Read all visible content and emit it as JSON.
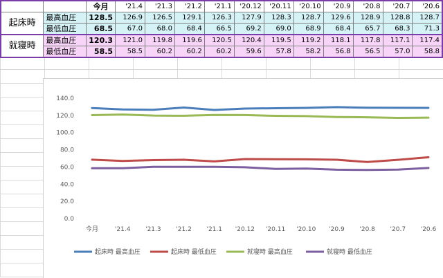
{
  "table": {
    "months": [
      "今月",
      "'21.4",
      "'21.3",
      "'21.2",
      "'21.1",
      "'20.12",
      "'20.11",
      "'20.10",
      "'20.9",
      "'20.8",
      "'20.7",
      "'20.6"
    ],
    "groups": [
      {
        "name": "起床時",
        "rows": [
          {
            "label": "最高血圧",
            "values": [
              "128.5",
              "126.9",
              "126.5",
              "129.1",
              "126.3",
              "127.9",
              "128.3",
              "128.7",
              "129.6",
              "128.9",
              "128.8",
              "128.7"
            ]
          },
          {
            "label": "最低血圧",
            "values": [
              "68.5",
              "67.0",
              "68.0",
              "68.4",
              "66.5",
              "69.2",
              "69.0",
              "68.9",
              "68.4",
              "65.7",
              "68.3",
              "71.3"
            ]
          }
        ]
      },
      {
        "name": "就寝時",
        "rows": [
          {
            "label": "最高血圧",
            "values": [
              "120.3",
              "121.0",
              "119.8",
              "119.6",
              "120.5",
              "120.4",
              "119.5",
              "119.2",
              "118.1",
              "117.8",
              "117.1",
              "117.4"
            ]
          },
          {
            "label": "最低血圧",
            "values": [
              "58.5",
              "58.5",
              "60.2",
              "60.2",
              "60.2",
              "59.6",
              "57.8",
              "58.2",
              "56.8",
              "56.5",
              "57.0",
              "58.8"
            ]
          }
        ]
      }
    ]
  },
  "chart_data": {
    "type": "line",
    "categories": [
      "今月",
      "'21.4",
      "'21.3",
      "'21.2",
      "'21.1",
      "'20.12",
      "'20.11",
      "'20.10",
      "'20.9",
      "'20.8",
      "'20.7",
      "'20.6"
    ],
    "ylim": [
      0,
      140
    ],
    "yticks": [
      "0.0",
      "20.0",
      "40.0",
      "60.0",
      "80.0",
      "100.0",
      "120.0",
      "140.0"
    ],
    "grid": false,
    "legend_position": "bottom",
    "series": [
      {
        "name": "起床時 最高血圧",
        "color": "#4a7ebb",
        "values": [
          128.5,
          126.9,
          126.5,
          129.1,
          126.3,
          127.9,
          128.3,
          128.7,
          129.6,
          128.9,
          128.8,
          128.7
        ]
      },
      {
        "name": "起床時 最低血圧",
        "color": "#be4b48",
        "values": [
          68.5,
          67.0,
          68.0,
          68.4,
          66.5,
          69.2,
          69.0,
          68.9,
          68.4,
          65.7,
          68.3,
          71.3
        ]
      },
      {
        "name": "就寝時 最高血圧",
        "color": "#98b954",
        "values": [
          120.3,
          121.0,
          119.8,
          119.6,
          120.5,
          120.4,
          119.5,
          119.2,
          118.1,
          117.8,
          117.1,
          117.4
        ]
      },
      {
        "name": "就寝時 最低血圧",
        "color": "#7d5fa0",
        "values": [
          58.5,
          58.5,
          60.2,
          60.2,
          60.2,
          59.6,
          57.8,
          58.2,
          56.8,
          56.5,
          57.0,
          58.8
        ]
      }
    ]
  }
}
